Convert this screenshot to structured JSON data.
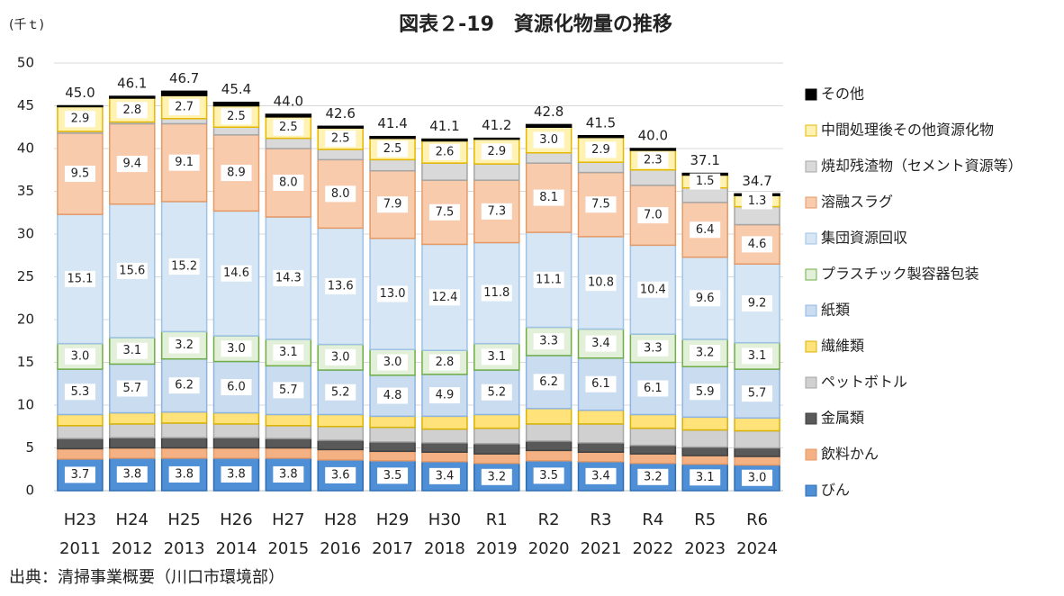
{
  "chart_data": {
    "type": "stacked_bar",
    "title": "図表２-19　資源化物量の推移",
    "y_label": "(千ｔ)",
    "source": "出典：清掃事業概要（川口市環境部）",
    "categories": [
      "H23",
      "H24",
      "H25",
      "H26",
      "H27",
      "H28",
      "H29",
      "H30",
      "R1",
      "R2",
      "R3",
      "R4",
      "R5",
      "R6"
    ],
    "category_years": [
      "2011",
      "2012",
      "2013",
      "2014",
      "2015",
      "2016",
      "2017",
      "2018",
      "2019",
      "2020",
      "2021",
      "2022",
      "2023",
      "2024"
    ],
    "totals": [
      45.0,
      46.1,
      46.7,
      45.4,
      44.0,
      42.6,
      41.4,
      41.1,
      41.2,
      42.8,
      41.5,
      40.0,
      37.1,
      34.7
    ],
    "total_labels": [
      "45.0",
      "46.1",
      "46.7",
      "45.4",
      "44.0",
      "42.6",
      "41.4",
      "41.1",
      "41.2",
      "42.8",
      "41.5",
      "40.0",
      "37.1",
      "34.7"
    ],
    "ylim": [
      0,
      50
    ],
    "yticks": [
      0,
      5,
      10,
      15,
      20,
      25,
      30,
      35,
      40,
      45,
      50
    ],
    "grid": true,
    "series": [
      {
        "name": "びん",
        "color": "#4f8fd6",
        "stroke": "#2e6db4",
        "values": [
          3.7,
          3.8,
          3.8,
          3.8,
          3.8,
          3.6,
          3.5,
          3.4,
          3.2,
          3.5,
          3.4,
          3.2,
          3.1,
          3.0
        ],
        "value_labels": [
          "3.7",
          "3.8",
          "3.8",
          "3.8",
          "3.8",
          "3.6",
          "3.5",
          "3.4",
          "3.2",
          "3.5",
          "3.4",
          "3.2",
          "3.1",
          "3.0"
        ]
      },
      {
        "name": "飲料かん",
        "color": "#f4b183",
        "stroke": "#e59a66",
        "values": [
          1.2,
          1.2,
          1.2,
          1.2,
          1.2,
          1.2,
          1.1,
          1.1,
          1.1,
          1.2,
          1.1,
          1.1,
          1.0,
          1.0
        ]
      },
      {
        "name": "金属類",
        "color": "#595959",
        "stroke": "#404040",
        "values": [
          1.2,
          1.2,
          1.2,
          1.2,
          1.1,
          1.1,
          1.1,
          1.1,
          1.2,
          1.1,
          1.1,
          1.0,
          1.0,
          1.0
        ]
      },
      {
        "name": "ペットボトル",
        "color": "#d0d0d0",
        "stroke": "#a6a6a6",
        "values": [
          1.5,
          1.6,
          1.7,
          1.6,
          1.5,
          1.6,
          1.7,
          1.6,
          1.8,
          2.0,
          2.2,
          2.0,
          2.0,
          2.0
        ]
      },
      {
        "name": "繊維類",
        "color": "#ffe27a",
        "stroke": "#d9b300",
        "values": [
          1.3,
          1.3,
          1.3,
          1.3,
          1.3,
          1.4,
          1.3,
          1.5,
          1.6,
          1.8,
          1.6,
          1.6,
          1.5,
          1.5
        ]
      },
      {
        "name": "紙類",
        "color": "#c9dcf0",
        "stroke": "#8eb4e3",
        "values": [
          5.3,
          5.7,
          6.2,
          6.0,
          5.7,
          5.2,
          4.8,
          4.9,
          5.2,
          6.2,
          6.1,
          6.1,
          5.9,
          5.7
        ],
        "value_labels": [
          "5.3",
          "5.7",
          "6.2",
          "6.0",
          "5.7",
          "5.2",
          "4.8",
          "4.9",
          "5.2",
          "6.2",
          "6.1",
          "6.1",
          "5.9",
          "5.7"
        ]
      },
      {
        "name": "プラスチック製容器包装",
        "color": "#e2efd9",
        "stroke": "#70ad47",
        "values": [
          3.0,
          3.1,
          3.2,
          3.0,
          3.1,
          3.0,
          3.0,
          2.8,
          3.1,
          3.3,
          3.4,
          3.3,
          3.2,
          3.1
        ],
        "value_labels": [
          "3.0",
          "3.1",
          "3.2",
          "3.0",
          "3.1",
          "3.0",
          "3.0",
          "2.8",
          "3.1",
          "3.3",
          "3.4",
          "3.3",
          "3.2",
          "3.1"
        ]
      },
      {
        "name": "集団資源回収",
        "color": "#d6e6f5",
        "stroke": "#9dc3e6",
        "values": [
          15.1,
          15.6,
          15.2,
          14.6,
          14.3,
          13.6,
          13.0,
          12.4,
          11.8,
          11.1,
          10.8,
          10.4,
          9.6,
          9.2
        ],
        "value_labels": [
          "15.1",
          "15.6",
          "15.2",
          "14.6",
          "14.3",
          "13.6",
          "13.0",
          "12.4",
          "11.8",
          "11.1",
          "10.8",
          "10.4",
          "9.6",
          "9.2"
        ]
      },
      {
        "name": "溶融スラグ",
        "color": "#f8cbad",
        "stroke": "#e59a66",
        "values": [
          9.5,
          9.4,
          9.1,
          8.9,
          8.0,
          8.0,
          7.9,
          7.5,
          7.3,
          8.1,
          7.5,
          7.0,
          6.4,
          4.6
        ],
        "value_labels": [
          "9.5",
          "9.4",
          "9.1",
          "8.9",
          "8.0",
          "8.0",
          "7.9",
          "7.5",
          "7.3",
          "8.1",
          "7.5",
          "7.0",
          "6.4",
          "4.6"
        ]
      },
      {
        "name": "焼却残渣物（セメント資源等）",
        "color": "#d9d9d9",
        "stroke": "#a6a6a6",
        "values": [
          0.2,
          0.2,
          0.6,
          0.9,
          1.2,
          1.2,
          1.3,
          2.0,
          1.9,
          1.2,
          1.2,
          1.8,
          1.7,
          2.1
        ]
      },
      {
        "name": "中間処理後その他資源化物",
        "color": "#fff2b3",
        "stroke": "#e6b800",
        "values": [
          2.9,
          2.8,
          2.7,
          2.5,
          2.5,
          2.5,
          2.5,
          2.6,
          2.9,
          3.0,
          2.9,
          2.3,
          1.5,
          1.3
        ],
        "value_labels": [
          "2.9",
          "2.8",
          "2.7",
          "2.5",
          "2.5",
          "2.5",
          "2.5",
          "2.6",
          "2.9",
          "3.0",
          "2.9",
          "2.3",
          "1.5",
          "1.3"
        ]
      },
      {
        "name": "その他",
        "color": "#000000",
        "stroke": "#000000",
        "values": [
          0.1,
          0.2,
          0.5,
          0.4,
          0.3,
          0.2,
          0.2,
          0.2,
          0.1,
          0.3,
          0.2,
          0.2,
          0.2,
          0.2
        ]
      }
    ]
  }
}
